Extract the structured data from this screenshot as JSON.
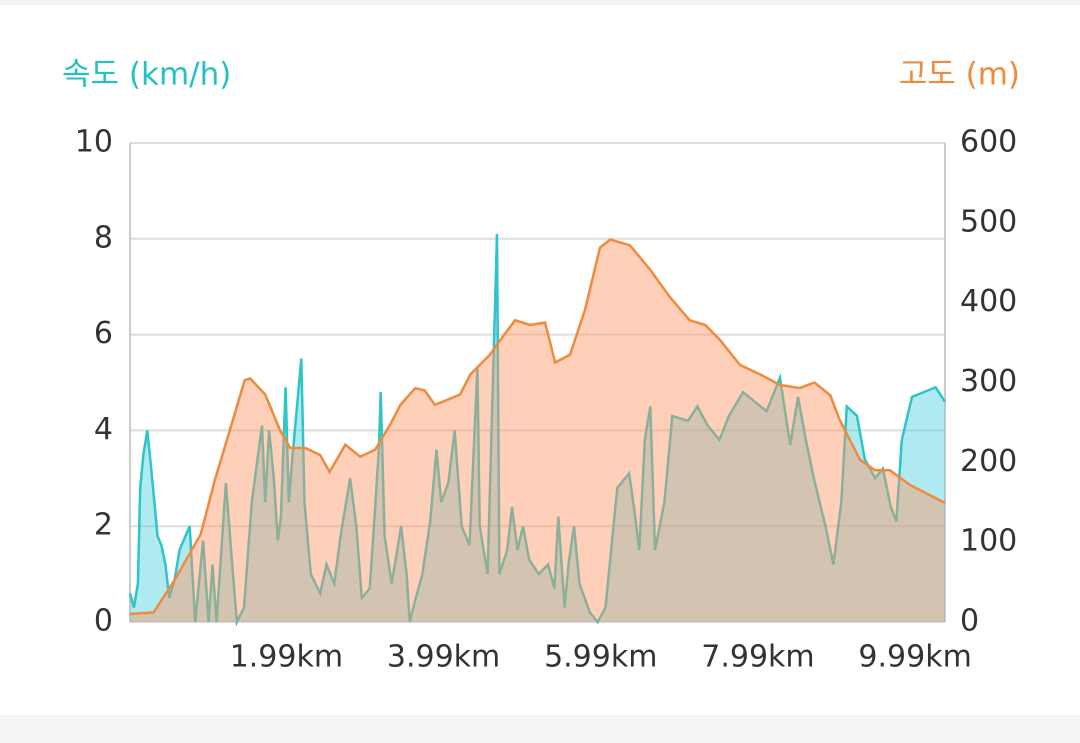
{
  "chart_data": {
    "type": "area",
    "y_label": "속도 (km/h)",
    "y2_label": "고도 (m)",
    "xlim": [
      0,
      10.37
    ],
    "xticks": [
      {
        "value": 1.99,
        "label": "1.99km"
      },
      {
        "value": 3.99,
        "label": "3.99km"
      },
      {
        "value": 5.99,
        "label": "5.99km"
      },
      {
        "value": 7.99,
        "label": "7.99km"
      },
      {
        "value": 9.99,
        "label": "9.99km"
      }
    ],
    "ylim": [
      0,
      10
    ],
    "yticks": [
      0,
      2,
      4,
      6,
      8,
      10
    ],
    "y2lim": [
      0,
      600
    ],
    "y2ticks": [
      0,
      100,
      200,
      300,
      400,
      500,
      600
    ],
    "grid": true,
    "series": [
      {
        "name": "속도",
        "color": "#2ec4c8",
        "fill": "rgba(77,208,225,0.45)",
        "x": [
          0,
          0.05,
          0.1,
          0.13,
          0.17,
          0.22,
          0.27,
          0.31,
          0.35,
          0.4,
          0.45,
          0.5,
          0.57,
          0.63,
          0.76,
          0.83,
          0.93,
          1.0,
          1.05,
          1.1,
          1.22,
          1.3,
          1.36,
          1.45,
          1.55,
          1.63,
          1.68,
          1.72,
          1.77,
          1.83,
          1.88,
          1.92,
          1.98,
          2.02,
          2.07,
          2.18,
          2.22,
          2.3,
          2.42,
          2.5,
          2.6,
          2.68,
          2.8,
          2.88,
          2.95,
          3.05,
          3.12,
          3.17,
          3.19,
          3.24,
          3.33,
          3.45,
          3.52,
          3.56,
          3.62,
          3.72,
          3.82,
          3.9,
          3.96,
          4.05,
          4.13,
          4.22,
          4.32,
          4.42,
          4.45,
          4.55,
          4.67,
          4.7,
          4.8,
          4.86,
          4.93,
          5.0,
          5.08,
          5.2,
          5.32,
          5.4,
          5.45,
          5.53,
          5.58,
          5.65,
          5.72,
          5.85,
          5.95,
          6.05,
          6.2,
          6.35,
          6.42,
          6.48,
          6.55,
          6.62,
          6.68,
          6.8,
          6.9,
          7.1,
          7.22,
          7.35,
          7.5,
          7.62,
          7.8,
          7.95,
          8.1,
          8.27,
          8.4,
          8.5,
          8.6,
          8.7,
          8.85,
          8.95,
          9.05,
          9.12,
          9.25,
          9.35,
          9.48,
          9.58,
          9.68,
          9.75,
          9.82,
          9.95,
          10.1,
          10.25,
          10.37
        ],
        "values": [
          0.6,
          0.3,
          0.8,
          2.8,
          3.5,
          4.0,
          3.2,
          2.5,
          1.8,
          1.6,
          1.2,
          0.5,
          0.9,
          1.5,
          2.0,
          0,
          1.7,
          0,
          1.2,
          0,
          2.9,
          1.2,
          0,
          0.3,
          2.5,
          3.5,
          4.1,
          2.5,
          4.0,
          3.0,
          1.7,
          2.2,
          4.9,
          2.5,
          3.5,
          5.5,
          2.5,
          1.0,
          0.6,
          1.2,
          0.8,
          1.8,
          3.0,
          2.0,
          0.5,
          0.7,
          2.4,
          3.7,
          4.8,
          1.8,
          0.8,
          2.0,
          1.0,
          0,
          0.4,
          1.0,
          2.1,
          3.6,
          2.5,
          2.9,
          4.0,
          2.0,
          1.6,
          5.3,
          2.0,
          1.0,
          8.1,
          1.0,
          1.5,
          2.4,
          1.5,
          2.0,
          1.3,
          1.0,
          1.2,
          0.7,
          2.2,
          0.3,
          1.2,
          2.0,
          0.8,
          0.2,
          0,
          0.3,
          2.8,
          3.1,
          2.3,
          1.5,
          3.8,
          4.5,
          1.5,
          2.5,
          4.3,
          4.2,
          4.5,
          4.1,
          3.8,
          4.3,
          4.8,
          4.6,
          4.4,
          5.1,
          3.7,
          4.7,
          3.8,
          3.0,
          2.0,
          1.2,
          2.5,
          4.5,
          4.3,
          3.4,
          3.0,
          3.2,
          2.4,
          2.1,
          3.8,
          4.7,
          4.8,
          4.9,
          4.6
        ]
      },
      {
        "name": "고도",
        "color": "#f08a3c",
        "fill": "rgba(255,150,100,0.45)",
        "axis": "y2",
        "x": [
          0,
          0.3,
          0.57,
          0.9,
          1.08,
          1.27,
          1.46,
          1.53,
          1.72,
          1.91,
          2.04,
          2.23,
          2.42,
          2.54,
          2.74,
          2.93,
          3.12,
          3.31,
          3.44,
          3.63,
          3.75,
          3.88,
          4.2,
          4.33,
          4.58,
          4.71,
          4.9,
          5.09,
          5.28,
          5.41,
          5.6,
          5.79,
          5.98,
          6.11,
          6.36,
          6.62,
          6.87,
          7.12,
          7.32,
          7.51,
          7.76,
          8.02,
          8.27,
          8.52,
          8.71,
          8.91,
          9.03,
          9.29,
          9.48,
          9.67,
          9.92,
          10.37
        ],
        "values": [
          10,
          12,
          53,
          110,
          178,
          240,
          303,
          305,
          285,
          240,
          218,
          218,
          209,
          188,
          222,
          207,
          216,
          247,
          272,
          293,
          290,
          272,
          285,
          310,
          335,
          353,
          378,
          372,
          375,
          325,
          335,
          391,
          469,
          479,
          472,
          441,
          407,
          378,
          372,
          353,
          322,
          310,
          297,
          293,
          300,
          284,
          253,
          203,
          190,
          190,
          172,
          149
        ]
      }
    ]
  }
}
